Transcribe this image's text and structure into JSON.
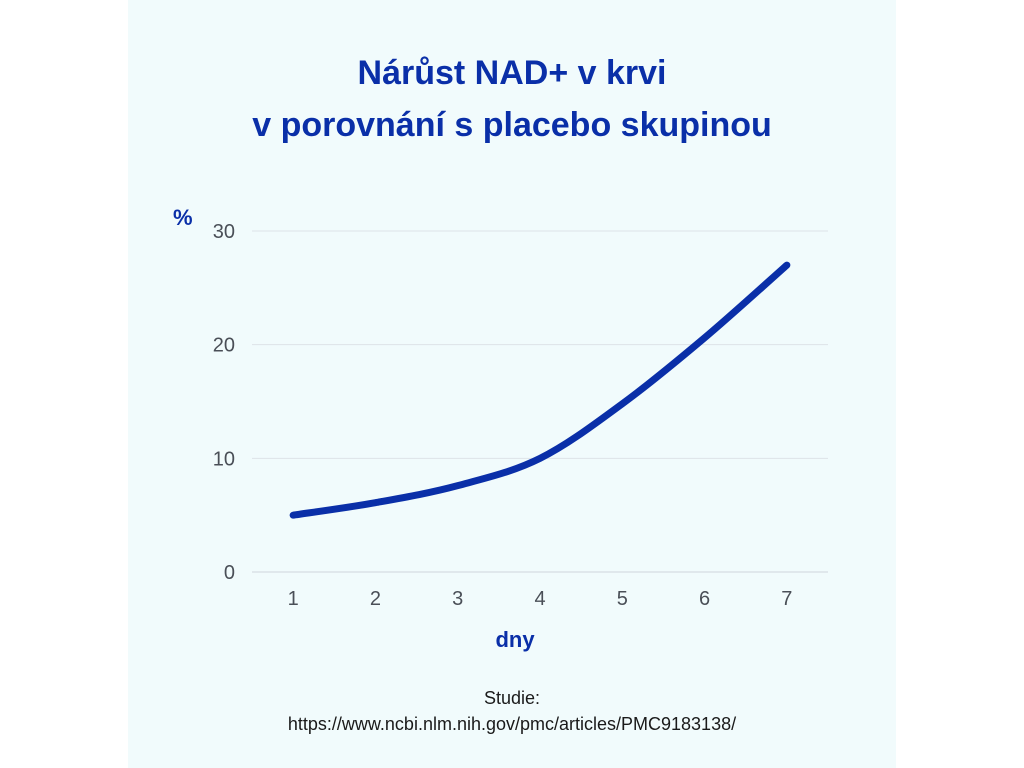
{
  "chart_data": {
    "type": "line",
    "title": "Nárůst NAD+ v krvi",
    "subtitle": "v porovnání s placebo skupinou",
    "ylabel": "%",
    "xlabel": "dny",
    "x": [
      1,
      2,
      3,
      4,
      5,
      6,
      7
    ],
    "y": [
      5,
      6.1,
      7.6,
      10,
      14.8,
      20.6,
      27
    ],
    "xticks": [
      "1",
      "2",
      "3",
      "4",
      "5",
      "6",
      "7"
    ],
    "yticks": [
      "0",
      "10",
      "20",
      "30"
    ],
    "xlim": [
      0.5,
      7.5
    ],
    "ylim": [
      0,
      30
    ],
    "grid": true,
    "color": "#0a2fa8"
  },
  "source": {
    "label": "Studie:",
    "url": "https://www.ncbi.nlm.nih.gov/pmc/articles/PMC9183138/"
  },
  "colors": {
    "panel_bg": "#f1fbfc",
    "accent": "#0a2fa8",
    "grid": "#dde3e7"
  }
}
